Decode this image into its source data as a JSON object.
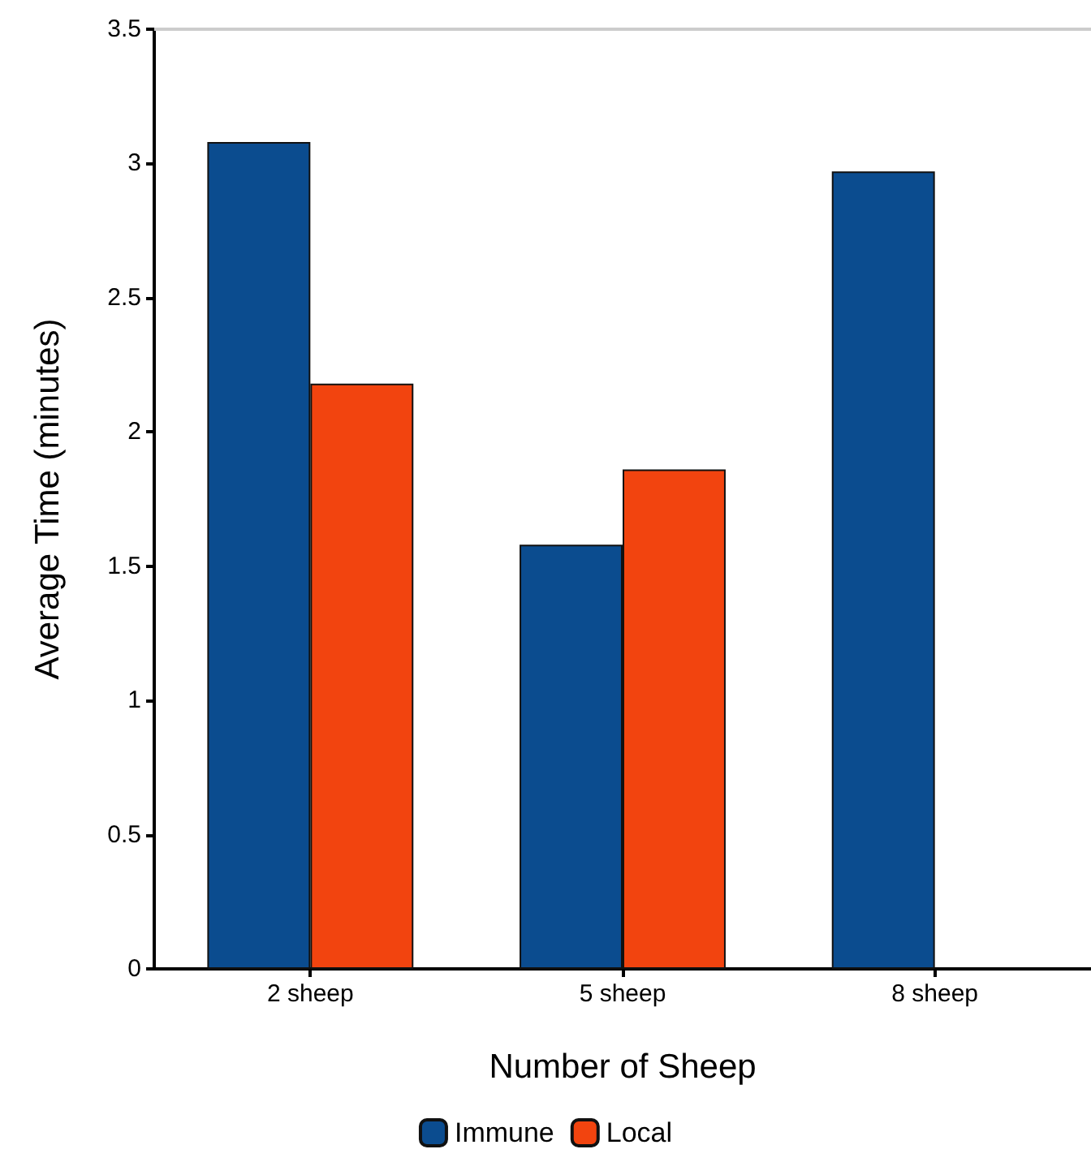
{
  "chart_data": {
    "type": "bar",
    "xlabel": "Number of Sheep",
    "ylabel": "Average Time (minutes)",
    "categories": [
      "2 sheep",
      "5 sheep",
      "8 sheep"
    ],
    "series": [
      {
        "name": "Immune",
        "color": "#0b4c8f",
        "values": [
          3.08,
          1.58,
          2.97
        ]
      },
      {
        "name": "Local",
        "color": "#f2440f",
        "values": [
          2.18,
          1.86,
          null
        ]
      }
    ],
    "ylim": [
      0,
      3.5
    ],
    "yticks": [
      0,
      0.5,
      1,
      1.5,
      2,
      2.5,
      3,
      3.5
    ],
    "grid": false,
    "legend": "bottom"
  }
}
